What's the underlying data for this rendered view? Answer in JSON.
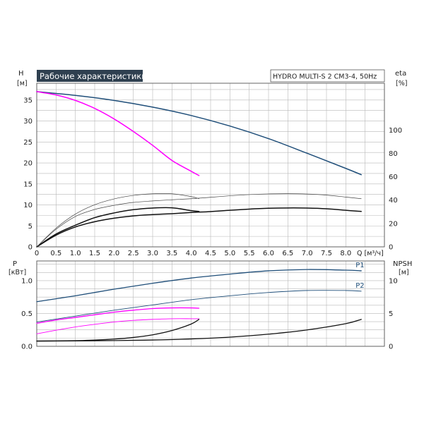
{
  "chart_data": {
    "type": "line",
    "title": "Рабочие характеристики",
    "model": "HYDRO MULTI-S 2 CM3-4, 50Hz",
    "colors": {
      "grid": "#b8b8b8",
      "frame": "#555555",
      "title_bg": "#2f4050",
      "navy": "#1f4e79",
      "magenta": "#ff00ff",
      "black": "#111111",
      "thin": "#444444"
    },
    "x": {
      "label": "Q [м³/ч]",
      "ticks": [
        "0",
        "0.5",
        "1.0",
        "1.5",
        "2.0",
        "2.5",
        "3.0",
        "3.5",
        "4.0",
        "4.5",
        "5.0",
        "5.5",
        "6.0",
        "6.5",
        "7.0",
        "7.5",
        "8.0"
      ],
      "range": [
        0,
        9
      ]
    },
    "upper": {
      "y_left": {
        "label": "H",
        "unit": "[м]",
        "ticks": [
          "0",
          "5",
          "10",
          "15",
          "20",
          "25",
          "30",
          "35"
        ],
        "range": [
          0,
          39
        ]
      },
      "y_right": {
        "label": "eta",
        "unit": "[%]",
        "ticks": [
          "0",
          "20",
          "40",
          "60",
          "80",
          "100"
        ],
        "range": [
          0,
          140
        ]
      },
      "series": [
        {
          "axis": "left",
          "color": "navy",
          "width": 1.5,
          "x": [
            0,
            1,
            2,
            3,
            4,
            5,
            6,
            7,
            8,
            8.4
          ],
          "y": [
            37,
            36.1,
            34.9,
            33.3,
            31.3,
            28.8,
            25.8,
            22.3,
            18.7,
            17.2
          ]
        },
        {
          "axis": "left",
          "color": "magenta",
          "width": 1.5,
          "x": [
            0,
            0.5,
            1,
            1.5,
            2,
            2.5,
            3,
            3.5,
            4,
            4.2
          ],
          "y": [
            37,
            36.2,
            34.9,
            33.0,
            30.5,
            27.5,
            24.2,
            20.6,
            18.0,
            17.0
          ]
        },
        {
          "axis": "right",
          "color": "black",
          "width": 1.5,
          "x": [
            0,
            0.5,
            1,
            1.5,
            2,
            2.5,
            3,
            3.5,
            4,
            4.5,
            5,
            5.5,
            6,
            6.5,
            7,
            7.5,
            8,
            8.4
          ],
          "y": [
            0,
            10,
            17,
            21.5,
            24.5,
            26.5,
            27.6,
            28.4,
            29.4,
            30.2,
            31.3,
            32.3,
            33.0,
            33.3,
            33.2,
            32.6,
            31.3,
            30.3
          ]
        },
        {
          "axis": "right",
          "color": "black",
          "width": 1.5,
          "x": [
            0,
            0.5,
            1,
            1.5,
            2,
            2.5,
            3,
            3.5,
            4,
            4.2
          ],
          "y": [
            0,
            11,
            18.5,
            25,
            29,
            31.8,
            33.2,
            33.4,
            31,
            30.3
          ]
        },
        {
          "axis": "right",
          "color": "thin",
          "width": 0.7,
          "x": [
            0,
            0.5,
            1,
            1.5,
            2,
            2.5,
            3,
            3.5,
            4,
            4.5,
            5,
            5.5,
            6,
            6.5,
            7,
            7.5,
            8,
            8.4
          ],
          "y": [
            0,
            15,
            26,
            32,
            35.5,
            38,
            39.3,
            40.3,
            41.2,
            42.4,
            43.7,
            44.7,
            45.3,
            45.5,
            45.2,
            44.3,
            42.6,
            41.2
          ]
        },
        {
          "axis": "right",
          "color": "thin",
          "width": 0.7,
          "x": [
            0,
            0.5,
            1,
            1.5,
            2,
            2.5,
            3,
            3.5,
            4,
            4.2
          ],
          "y": [
            0,
            16,
            28,
            36,
            41,
            44,
            45.4,
            45.4,
            43,
            41.2
          ]
        }
      ]
    },
    "lower": {
      "y_left": {
        "label": "P",
        "unit": "[кВт]",
        "ticks": [
          "0.0",
          "0.5",
          "1.0"
        ],
        "range": [
          0,
          1.3
        ]
      },
      "y_right": {
        "label": "NPSH",
        "unit": "[м]",
        "ticks": [
          "0",
          "5",
          "10"
        ],
        "range": [
          0,
          13
        ]
      },
      "series": [
        {
          "axis": "left",
          "color": "navy",
          "width": 1.3,
          "label": "P1",
          "x": [
            0,
            1,
            2,
            3,
            4,
            5,
            6,
            7,
            8,
            8.4
          ],
          "y": [
            0.68,
            0.77,
            0.87,
            0.96,
            1.04,
            1.1,
            1.15,
            1.17,
            1.16,
            1.15
          ]
        },
        {
          "axis": "left",
          "color": "navy",
          "width": 0.9,
          "label": "P2",
          "x": [
            0,
            1,
            2,
            3,
            4,
            5,
            6,
            7,
            8,
            8.4
          ],
          "y": [
            0.37,
            0.46,
            0.55,
            0.63,
            0.71,
            0.77,
            0.82,
            0.85,
            0.85,
            0.84
          ]
        },
        {
          "axis": "left",
          "color": "magenta",
          "width": 1.3,
          "x": [
            0,
            0.5,
            1,
            1.5,
            2,
            2.5,
            3,
            3.5,
            4,
            4.2
          ],
          "y": [
            0.35,
            0.4,
            0.44,
            0.48,
            0.52,
            0.55,
            0.575,
            0.585,
            0.585,
            0.58
          ]
        },
        {
          "axis": "left",
          "color": "magenta",
          "width": 0.9,
          "x": [
            0,
            0.5,
            1,
            1.5,
            2,
            2.5,
            3,
            3.5,
            4,
            4.2
          ],
          "y": [
            0.19,
            0.245,
            0.295,
            0.335,
            0.37,
            0.395,
            0.41,
            0.42,
            0.42,
            0.42
          ]
        },
        {
          "axis": "right",
          "color": "black",
          "width": 1.3,
          "x": [
            0,
            1,
            2,
            3,
            4,
            5,
            6,
            7,
            8,
            8.4
          ],
          "y": [
            0.8,
            0.82,
            0.87,
            0.96,
            1.12,
            1.4,
            1.85,
            2.5,
            3.45,
            4.1
          ]
        },
        {
          "axis": "right",
          "color": "black",
          "width": 1.3,
          "x": [
            0,
            0.5,
            1,
            1.5,
            2,
            2.5,
            3,
            3.5,
            4,
            4.2
          ],
          "y": [
            0.8,
            0.82,
            0.86,
            0.95,
            1.1,
            1.35,
            1.75,
            2.4,
            3.4,
            4.1
          ]
        }
      ]
    }
  }
}
